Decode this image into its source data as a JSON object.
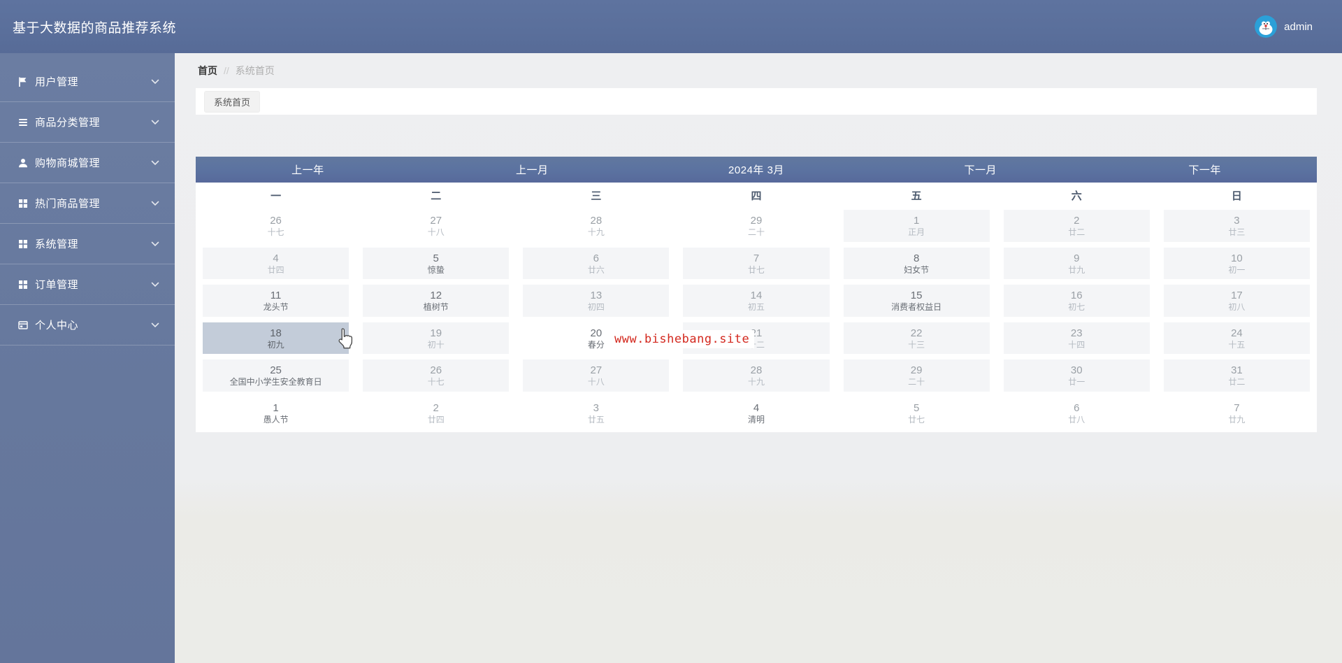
{
  "header": {
    "title": "基于大数据的商品推荐系统",
    "user": {
      "name": "admin"
    }
  },
  "sidebar": {
    "items": [
      {
        "label": "用户管理",
        "slug": "user-management",
        "icon": "flag-icon"
      },
      {
        "label": "商品分类管理",
        "slug": "category-management",
        "icon": "menu-lines-icon"
      },
      {
        "label": "购物商城管理",
        "slug": "mall-management",
        "icon": "user-icon"
      },
      {
        "label": "热门商品管理",
        "slug": "hot-goods-management",
        "icon": "grid-icon"
      },
      {
        "label": "系统管理",
        "slug": "system-management",
        "icon": "grid-icon"
      },
      {
        "label": "订单管理",
        "slug": "order-management",
        "icon": "grid-icon"
      },
      {
        "label": "个人中心",
        "slug": "personal-center",
        "icon": "id-card-icon"
      }
    ]
  },
  "breadcrumb": {
    "home": "首页",
    "separator": "//",
    "current": "系统首页"
  },
  "tabs": [
    {
      "label": "系统首页"
    }
  ],
  "watermark": {
    "text": "www.bishebang.site",
    "color": "#d3281e"
  },
  "calendar": {
    "title": "2024年 3月",
    "nav": [
      {
        "label": "上一年",
        "slug": "prev-year",
        "interactable": true
      },
      {
        "label": "上一月",
        "slug": "prev-month",
        "interactable": true
      },
      {
        "label": "2024年 3月",
        "slug": "title",
        "interactable": false
      },
      {
        "label": "下一月",
        "slug": "next-month",
        "interactable": true
      },
      {
        "label": "下一年",
        "slug": "next-year",
        "interactable": true
      }
    ],
    "weekdays": [
      "一",
      "二",
      "三",
      "四",
      "五",
      "六",
      "日"
    ],
    "weeks": [
      [
        {
          "day": "26",
          "lunar": "十七",
          "month": "prev"
        },
        {
          "day": "27",
          "lunar": "十八",
          "month": "prev"
        },
        {
          "day": "28",
          "lunar": "十九",
          "month": "prev"
        },
        {
          "day": "29",
          "lunar": "二十",
          "month": "prev"
        },
        {
          "day": "1",
          "lunar": "正月",
          "month": "cur"
        },
        {
          "day": "2",
          "lunar": "廿二",
          "month": "cur"
        },
        {
          "day": "3",
          "lunar": "廿三",
          "month": "cur"
        }
      ],
      [
        {
          "day": "4",
          "lunar": "廿四",
          "month": "cur"
        },
        {
          "day": "5",
          "lunar": "惊蛰",
          "month": "cur",
          "festival": true
        },
        {
          "day": "6",
          "lunar": "廿六",
          "month": "cur"
        },
        {
          "day": "7",
          "lunar": "廿七",
          "month": "cur"
        },
        {
          "day": "8",
          "lunar": "妇女节",
          "month": "cur",
          "festival": true
        },
        {
          "day": "9",
          "lunar": "廿九",
          "month": "cur"
        },
        {
          "day": "10",
          "lunar": "初一",
          "month": "cur"
        }
      ],
      [
        {
          "day": "11",
          "lunar": "龙头节",
          "month": "cur",
          "festival": true
        },
        {
          "day": "12",
          "lunar": "植树节",
          "month": "cur",
          "festival": true
        },
        {
          "day": "13",
          "lunar": "初四",
          "month": "cur"
        },
        {
          "day": "14",
          "lunar": "初五",
          "month": "cur"
        },
        {
          "day": "15",
          "lunar": "消费者权益日",
          "month": "cur",
          "festival": true
        },
        {
          "day": "16",
          "lunar": "初七",
          "month": "cur"
        },
        {
          "day": "17",
          "lunar": "初八",
          "month": "cur"
        }
      ],
      [
        {
          "day": "18",
          "lunar": "初九",
          "month": "cur",
          "selected": true
        },
        {
          "day": "19",
          "lunar": "初十",
          "month": "cur"
        },
        {
          "day": "20",
          "lunar": "春分",
          "month": "cur",
          "festival": true,
          "plain": true
        },
        {
          "day": "21",
          "lunar": "十二",
          "month": "cur"
        },
        {
          "day": "22",
          "lunar": "十三",
          "month": "cur"
        },
        {
          "day": "23",
          "lunar": "十四",
          "month": "cur"
        },
        {
          "day": "24",
          "lunar": "十五",
          "month": "cur"
        }
      ],
      [
        {
          "day": "25",
          "lunar": "全国中小学生安全教育日",
          "month": "cur",
          "festival": true
        },
        {
          "day": "26",
          "lunar": "十七",
          "month": "cur"
        },
        {
          "day": "27",
          "lunar": "十八",
          "month": "cur"
        },
        {
          "day": "28",
          "lunar": "十九",
          "month": "cur"
        },
        {
          "day": "29",
          "lunar": "二十",
          "month": "cur"
        },
        {
          "day": "30",
          "lunar": "廿一",
          "month": "cur"
        },
        {
          "day": "31",
          "lunar": "廿二",
          "month": "cur"
        }
      ],
      [
        {
          "day": "1",
          "lunar": "愚人节",
          "month": "next",
          "festival": true
        },
        {
          "day": "2",
          "lunar": "廿四",
          "month": "next"
        },
        {
          "day": "3",
          "lunar": "廿五",
          "month": "next"
        },
        {
          "day": "4",
          "lunar": "清明",
          "month": "next",
          "festival": true
        },
        {
          "day": "5",
          "lunar": "廿七",
          "month": "next"
        },
        {
          "day": "6",
          "lunar": "廿八",
          "month": "next"
        },
        {
          "day": "7",
          "lunar": "廿九",
          "month": "next"
        }
      ]
    ]
  },
  "colors": {
    "header_bg": "#5a6f9b",
    "sidebar_bg": "#66789d",
    "calendar_bar_bg": "#5b72a0",
    "page_bg": "#edeef0",
    "cell_highlight": "#f4f5f7",
    "cell_selected": "#c3ccd9",
    "watermark_red": "#d3281e"
  }
}
